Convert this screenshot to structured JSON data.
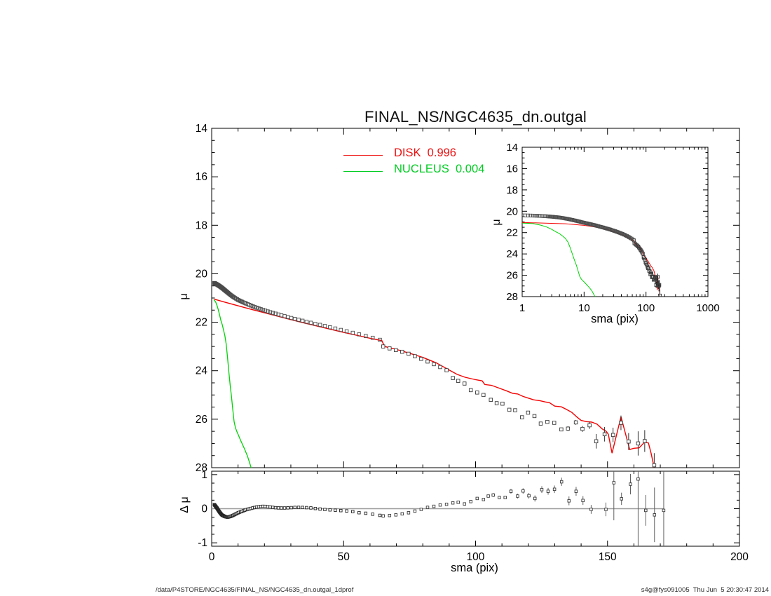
{
  "title": "FINAL_NS/NGC4635_dn.outgal",
  "legend": [
    {
      "label": "DISK  0.996",
      "color": "#ee1111"
    },
    {
      "label": "NUCLEUS  0.004",
      "color": "#00cc22"
    }
  ],
  "axis_labels": {
    "mu": "μ",
    "delta_mu": "Δ μ",
    "sma": "sma (pix)"
  },
  "footer": {
    "left": "/data/P4STORE/NGC4635/FINAL_NS/NGC4635_dn.outgal_1dprof",
    "right": "s4g@fys091005  Thu Jun  5 20:30:47 2014"
  },
  "colors": {
    "disk": "#f40202",
    "nucleus": "#00d405",
    "data_marker": "#4a4a4a",
    "tail_marker": "#3a3a3a",
    "error_bar": "#606060",
    "zero_line": "#9b9b9b",
    "axis": "#000000",
    "background": "#ffffff"
  },
  "chart_data": {
    "type": "scatter",
    "panels": [
      {
        "id": "main",
        "ylabel": "μ",
        "xscale": "linear",
        "xlim": [
          0,
          200
        ],
        "ylim": [
          28,
          14
        ],
        "x_major_ticks": [
          0,
          50,
          100,
          150,
          200
        ],
        "x_minor_step": 10,
        "y_major_ticks": [
          14,
          16,
          18,
          20,
          22,
          24,
          26,
          28
        ],
        "y_minor_step": 0.5,
        "x_tick_labels_shown": false
      },
      {
        "id": "inset",
        "xlabel": "sma (pix)",
        "ylabel": "μ",
        "xscale": "log",
        "xlim": [
          1,
          1000
        ],
        "ylim": [
          28,
          14
        ],
        "x_major_ticks": [
          1,
          10,
          100,
          1000
        ],
        "y_major_ticks": [
          14,
          16,
          18,
          20,
          22,
          24,
          26,
          28
        ],
        "y_minor_step": 0.5
      },
      {
        "id": "residual",
        "xlabel": "sma (pix)",
        "ylabel": "Δ μ",
        "xscale": "linear",
        "xlim": [
          0,
          200
        ],
        "ylim": [
          -1.1,
          1.1
        ],
        "x_major_ticks": [
          0,
          50,
          100,
          150,
          200
        ],
        "x_minor_step": 10,
        "y_major_ticks": [
          -1,
          0,
          1
        ],
        "y_minor_step": 0.25,
        "zero_line_x_range": [
          0,
          171.3
        ]
      }
    ],
    "series": {
      "galaxy_profile": {
        "marker": "open-square",
        "control_points": [
          [
            1,
            20.38
          ],
          [
            2,
            20.44
          ],
          [
            3,
            20.51
          ],
          [
            4,
            20.59
          ],
          [
            5,
            20.68
          ],
          [
            6,
            20.77
          ],
          [
            7,
            20.86
          ],
          [
            8,
            20.94
          ],
          [
            9,
            21.01
          ],
          [
            10,
            21.08
          ],
          [
            12,
            21.18
          ],
          [
            14,
            21.27
          ],
          [
            16,
            21.36
          ],
          [
            18,
            21.44
          ],
          [
            20,
            21.51
          ],
          [
            22,
            21.58
          ],
          [
            24,
            21.64
          ],
          [
            26,
            21.7
          ],
          [
            28,
            21.76
          ],
          [
            30,
            21.82
          ],
          [
            33,
            21.9
          ],
          [
            36,
            21.98
          ],
          [
            39,
            22.06
          ],
          [
            42,
            22.13
          ],
          [
            45,
            22.21
          ],
          [
            48,
            22.29
          ],
          [
            51,
            22.37
          ],
          [
            54,
            22.45
          ],
          [
            57,
            22.53
          ],
          [
            60,
            22.61
          ],
          [
            62,
            22.67
          ],
          [
            64,
            22.73
          ]
        ],
        "tail_points": [
          [
            65,
            23.0,
            0
          ],
          [
            67.4,
            23.08,
            0
          ],
          [
            69.8,
            23.15,
            0
          ],
          [
            72.2,
            23.22,
            0
          ],
          [
            74.6,
            23.3,
            0
          ],
          [
            77,
            23.4,
            0
          ],
          [
            79.4,
            23.51,
            0
          ],
          [
            81.8,
            23.62,
            0
          ],
          [
            84.2,
            23.73,
            0
          ],
          [
            86.6,
            23.85,
            0
          ],
          [
            89,
            23.98,
            0
          ],
          [
            91.4,
            24.3,
            0
          ],
          [
            93.4,
            24.42,
            0
          ],
          [
            95.8,
            24.53,
            0
          ],
          [
            98.2,
            24.8,
            0
          ],
          [
            100.6,
            24.9,
            0
          ],
          [
            103,
            25.0,
            0
          ],
          [
            105.8,
            25.2,
            0
          ],
          [
            108,
            25.34,
            0
          ],
          [
            110.2,
            25.36,
            0
          ],
          [
            112.8,
            25.61,
            0
          ],
          [
            115,
            25.63,
            0
          ],
          [
            117.6,
            25.92,
            0
          ],
          [
            119.9,
            25.73,
            0
          ],
          [
            122.3,
            25.87,
            0
          ],
          [
            124.7,
            26.18,
            0
          ],
          [
            127.2,
            26.11,
            0
          ],
          [
            129.8,
            26.15,
            0
          ],
          [
            132.5,
            26.42,
            0
          ],
          [
            135,
            26.39,
            0.1
          ],
          [
            138,
            26.13,
            0.1
          ],
          [
            140.5,
            26.4,
            0.12
          ],
          [
            143.2,
            26.25,
            0.15
          ],
          [
            145.7,
            26.91,
            0.3
          ],
          [
            148.9,
            26.62,
            0.3
          ],
          [
            152.1,
            26.65,
            0.3
          ],
          [
            155.1,
            26.15,
            0.3
          ],
          [
            158,
            26.92,
            0.35
          ],
          [
            161.6,
            27.0,
            0.5
          ],
          [
            164.1,
            26.9,
            0.45
          ],
          [
            167.7,
            27.9,
            0.5
          ]
        ]
      },
      "disk_model": {
        "label": "DISK",
        "fraction": "0.996",
        "points": [
          [
            1,
            21.05
          ],
          [
            5,
            21.17
          ],
          [
            10,
            21.32
          ],
          [
            15,
            21.47
          ],
          [
            20,
            21.61
          ],
          [
            25,
            21.75
          ],
          [
            30,
            21.89
          ],
          [
            35,
            22.03
          ],
          [
            40,
            22.16
          ],
          [
            45,
            22.29
          ],
          [
            50,
            22.42
          ],
          [
            55,
            22.54
          ],
          [
            60,
            22.66
          ],
          [
            64.5,
            22.76
          ],
          [
            65.5,
            23.0
          ],
          [
            70,
            23.12
          ],
          [
            75,
            23.28
          ],
          [
            80,
            23.45
          ],
          [
            85,
            23.67
          ],
          [
            90,
            23.97
          ],
          [
            93,
            24.15
          ],
          [
            96,
            24.27
          ],
          [
            100,
            24.37
          ],
          [
            102.5,
            24.42
          ],
          [
            103.5,
            24.57
          ],
          [
            106,
            24.6
          ],
          [
            109,
            24.72
          ],
          [
            112,
            24.84
          ],
          [
            114,
            24.93
          ],
          [
            116,
            24.96
          ],
          [
            118,
            25.06
          ],
          [
            120,
            25.13
          ],
          [
            122,
            25.2
          ],
          [
            124.5,
            25.24
          ],
          [
            126.5,
            25.29
          ],
          [
            128,
            25.32
          ],
          [
            130,
            25.46
          ],
          [
            132.5,
            25.49
          ],
          [
            134.5,
            25.6
          ],
          [
            136.5,
            25.72
          ],
          [
            138.5,
            25.92
          ],
          [
            140,
            26.05
          ],
          [
            142,
            26.1
          ],
          [
            144,
            26.12
          ],
          [
            146,
            26.2
          ],
          [
            148,
            26.4
          ],
          [
            149.5,
            26.5
          ],
          [
            150.3,
            26.62
          ],
          [
            151.7,
            27.4
          ],
          [
            155.1,
            25.9
          ],
          [
            158.4,
            27.25
          ],
          [
            160,
            27.2
          ],
          [
            162,
            27.18
          ],
          [
            164,
            26.95
          ],
          [
            165.5,
            26.98
          ],
          [
            166.5,
            27.4
          ],
          [
            167.9,
            28.1
          ]
        ]
      },
      "nucleus_model": {
        "label": "NUCLEUS",
        "fraction": "0.004",
        "points": [
          [
            0.8,
            21.07
          ],
          [
            1.5,
            21.16
          ],
          [
            2,
            21.3
          ],
          [
            2.5,
            21.48
          ],
          [
            3,
            21.7
          ],
          [
            3.5,
            21.93
          ],
          [
            4,
            22.1
          ],
          [
            4.5,
            22.32
          ],
          [
            5,
            22.55
          ],
          [
            5.5,
            22.9
          ],
          [
            6,
            23.45
          ],
          [
            6.5,
            24.05
          ],
          [
            7,
            24.6
          ],
          [
            7.5,
            25.05
          ],
          [
            8,
            25.6
          ],
          [
            8.5,
            26.1
          ],
          [
            9,
            26.35
          ],
          [
            9.5,
            26.5
          ],
          [
            10,
            26.62
          ],
          [
            10.5,
            26.75
          ],
          [
            11,
            26.88
          ],
          [
            11.5,
            27.0
          ],
          [
            12,
            27.12
          ],
          [
            12.5,
            27.24
          ],
          [
            13,
            27.37
          ],
          [
            13.5,
            27.5
          ],
          [
            14,
            27.67
          ],
          [
            14.5,
            27.84
          ],
          [
            15,
            28.02
          ],
          [
            15.5,
            28.2
          ]
        ]
      },
      "residual_profile": {
        "dense_points": [
          [
            1,
            0.12
          ],
          [
            1.5,
            0.07
          ],
          [
            2,
            0.02
          ],
          [
            2.5,
            -0.04
          ],
          [
            3,
            -0.1
          ],
          [
            3.5,
            -0.15
          ],
          [
            4,
            -0.19
          ],
          [
            5,
            -0.23
          ],
          [
            6,
            -0.25
          ],
          [
            7,
            -0.23
          ],
          [
            8,
            -0.2
          ],
          [
            9,
            -0.16
          ],
          [
            10,
            -0.12
          ],
          [
            11,
            -0.09
          ],
          [
            12,
            -0.06
          ],
          [
            13,
            -0.03
          ],
          [
            14,
            -0.01
          ],
          [
            15,
            0.01
          ],
          [
            16,
            0.03
          ],
          [
            17,
            0.05
          ],
          [
            18,
            0.06
          ],
          [
            19,
            0.07
          ],
          [
            20,
            0.07
          ],
          [
            22,
            0.05
          ],
          [
            24,
            0.03
          ],
          [
            26,
            0.02
          ],
          [
            28,
            0.02
          ],
          [
            30,
            0.03
          ],
          [
            32,
            0.04
          ],
          [
            34,
            0.04
          ],
          [
            36,
            0.03
          ],
          [
            38,
            0.02
          ],
          [
            40,
            0.0
          ],
          [
            42,
            -0.02
          ],
          [
            44,
            -0.03
          ],
          [
            46,
            -0.04
          ],
          [
            48,
            -0.05
          ],
          [
            50,
            -0.06
          ],
          [
            52,
            -0.07
          ],
          [
            54,
            -0.09
          ],
          [
            56,
            -0.12
          ],
          [
            58,
            -0.13
          ],
          [
            60,
            -0.15
          ],
          [
            62,
            -0.17
          ],
          [
            64,
            -0.2
          ]
        ],
        "mid_points": [
          [
            65,
            -0.21
          ],
          [
            67.4,
            -0.2
          ],
          [
            69.8,
            -0.18
          ],
          [
            72.2,
            -0.15
          ],
          [
            74.6,
            -0.12
          ],
          [
            77,
            -0.07
          ],
          [
            79.4,
            -0.02
          ],
          [
            81.8,
            0.04
          ],
          [
            84.2,
            0.07
          ],
          [
            86.6,
            0.11
          ],
          [
            89,
            0.13
          ],
          [
            91.4,
            0.17
          ],
          [
            93.4,
            0.19
          ],
          [
            95.8,
            0.14
          ],
          [
            98.2,
            0.21
          ],
          [
            100.6,
            0.3
          ],
          [
            103,
            0.27
          ],
          [
            104.8,
            0.37
          ]
        ],
        "scatter_points": [
          [
            106.7,
            0.4,
            0.06
          ],
          [
            109,
            0.33,
            0.05
          ],
          [
            111.2,
            0.33,
            0.05
          ],
          [
            113.4,
            0.51,
            0.07
          ],
          [
            115.9,
            0.37,
            0.07
          ],
          [
            118,
            0.52,
            0.08
          ],
          [
            120.2,
            0.38,
            0.08
          ],
          [
            122.5,
            0.3,
            0.09
          ],
          [
            125.1,
            0.56,
            0.1
          ],
          [
            127.5,
            0.51,
            0.1
          ],
          [
            129.9,
            0.57,
            0.11
          ],
          [
            132.6,
            0.79,
            0.12
          ],
          [
            135.4,
            0.23,
            0.13
          ],
          [
            138.1,
            0.51,
            0.13
          ],
          [
            140.7,
            0.24,
            0.13
          ],
          [
            143.8,
            -0.02,
            0.13
          ],
          [
            149.4,
            -0.02,
            0.2
          ],
          [
            152.4,
            0.76,
            1.1
          ],
          [
            155.3,
            0.29,
            0.18
          ],
          [
            158.7,
            0.72,
            0.3
          ],
          [
            161.6,
            0.87,
            2.4
          ],
          [
            164.5,
            -0.05,
            0.45
          ],
          [
            167.8,
            -0.18,
            0.8
          ],
          [
            171.3,
            -0.05,
            2.6
          ]
        ]
      }
    }
  }
}
